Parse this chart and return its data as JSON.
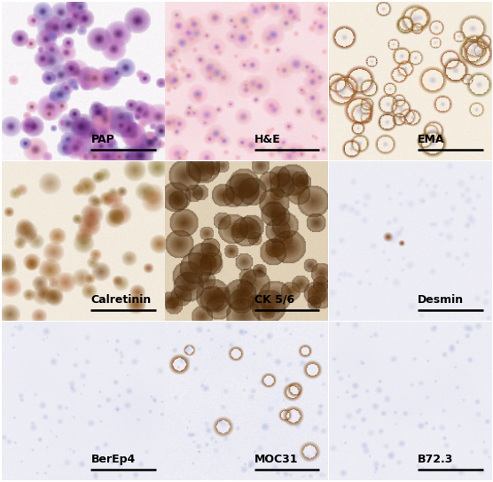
{
  "grid_rows": 3,
  "grid_cols": 3,
  "labels": [
    [
      "PAP",
      "H&E",
      "EMA"
    ],
    [
      "Calretinin",
      "CK 5/6",
      "Desmin"
    ],
    [
      "BerEp4",
      "MOC31",
      "B72.3"
    ]
  ],
  "figsize": [
    5.56,
    5.44
  ],
  "dpi": 100,
  "label_fontsize": 9,
  "scalebar_color": "#000000",
  "background_color": "#ffffff"
}
